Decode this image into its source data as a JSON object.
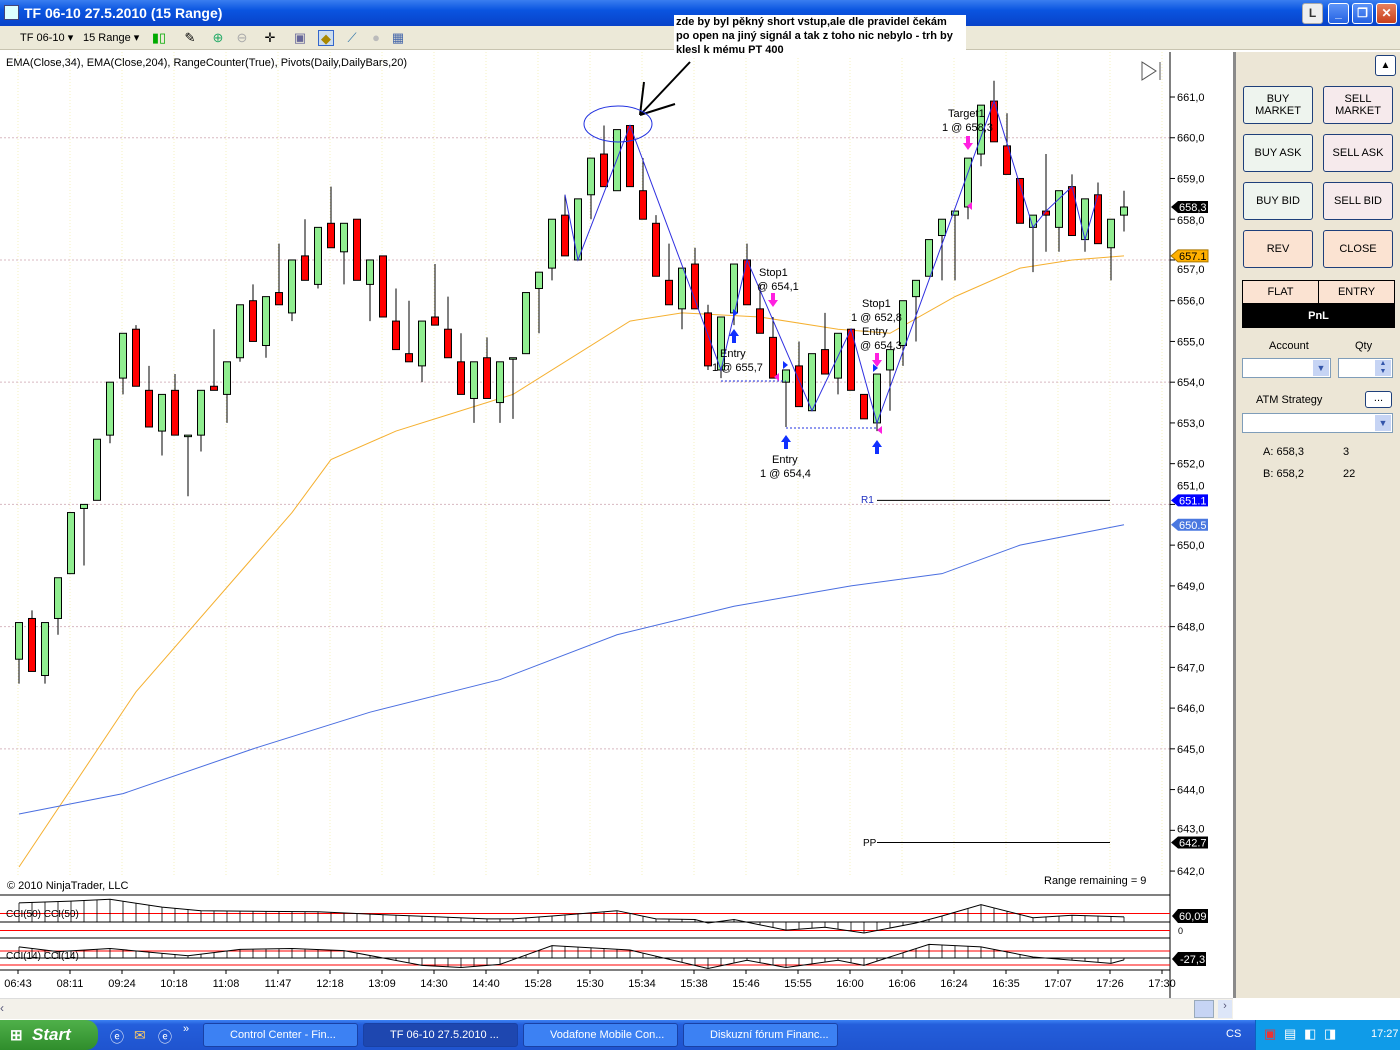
{
  "window": {
    "title": "TF 06-10  27.5.2010 (15 Range)",
    "buttons": {
      "l": "L",
      "minimize": "_",
      "restore": "❐",
      "close": "✕"
    }
  },
  "toolbar": {
    "instrument": "TF 06-10",
    "period": "15 Range",
    "icons": [
      "candlestick-style-icon",
      "pencil-draw-icon",
      "zoom-in-icon",
      "zoom-out-icon",
      "crosshair-icon",
      "properties-icon",
      "strategies-icon",
      "indicators-icon",
      "disabled-icon",
      "data-box-icon"
    ]
  },
  "chart": {
    "indicator_legend": "EMA(Close,34), EMA(Close,204), RangeCounter(True), Pivots(Daily,DailyBars,20)",
    "annotation": [
      "zde by byl pěkný short vstup,ale dle pravidel čekám",
      "po open na jiný signál a tak z toho nic nebylo - trh by",
      "klesl k mému PT 400"
    ],
    "copyright": "© 2010 NinjaTrader, LLC",
    "range_remaining": "Range remaining = 9",
    "pivot_labels": {
      "r1": "R1",
      "pp": "PP"
    },
    "trade_labels": [
      {
        "l1": "Stop1",
        "l2": "@ 654,1"
      },
      {
        "l1": "Entry",
        "l2": "1 @ 655,7"
      },
      {
        "l1": "Stop1",
        "l2": "1 @ 652,8"
      },
      {
        "l1": "Entry",
        "l2": "@ 654,3"
      },
      {
        "l1": "Entry",
        "l2": "1 @ 654,4"
      },
      {
        "l1": "Target1",
        "l2": "1 @ 658,3"
      }
    ],
    "price_ticks": [
      "661,0",
      "660,0",
      "659,0",
      "658,0",
      "657,0",
      "656,0",
      "655,0",
      "654,0",
      "653,0",
      "652,0",
      "651,0",
      "650,0",
      "649,0",
      "648,0",
      "647,0",
      "646,0",
      "645,0",
      "644,0",
      "643,0",
      "642,0"
    ],
    "price_tags": [
      {
        "text": "658,3",
        "value": 658.3,
        "color": "#000000"
      },
      {
        "text": "657.1",
        "value": 657.1,
        "color": "#ffb000"
      },
      {
        "text": "651.1",
        "value": 651.1,
        "color": "#0000ff"
      },
      {
        "text": "650.5",
        "value": 650.5,
        "color": "#4a78e0"
      },
      {
        "text": "642.7",
        "value": 642.7,
        "color": "#000000"
      }
    ],
    "time_labels": [
      "06:43",
      "08:11",
      "09:24",
      "10:18",
      "11:08",
      "11:47",
      "12:18",
      "13:09",
      "14:30",
      "14:40",
      "15:28",
      "15:30",
      "15:34",
      "15:38",
      "15:46",
      "15:55",
      "16:00",
      "16:06",
      "16:24",
      "16:35",
      "17:07",
      "17:26",
      "17:30"
    ],
    "cci50": {
      "label": "CCI(50) CCI(50)",
      "value_tag": "60,09",
      "zero_label": "0"
    },
    "cci14": {
      "label": "CCI(14) CCI(14)",
      "value_tag": "-27,3"
    }
  },
  "chart_data": {
    "type": "candlestick",
    "ylim": [
      642,
      661.5
    ],
    "colors": {
      "up": "#90ee90",
      "down": "#ff0000",
      "ema34": "#f5b030",
      "ema204": "#4a6ee0",
      "zigzag": "#3030e0",
      "pivot": "#000000",
      "cci_bands": "#ff0000"
    },
    "ohlc": [
      [
        647.2,
        648.1,
        646.6,
        648.1
      ],
      [
        648.2,
        648.4,
        646.9,
        646.9
      ],
      [
        646.8,
        648.1,
        646.6,
        648.1
      ],
      [
        648.2,
        649.2,
        647.8,
        649.2
      ],
      [
        649.3,
        650.8,
        649.3,
        650.8
      ],
      [
        650.9,
        651.0,
        649.5,
        651.0
      ],
      [
        651.1,
        652.6,
        651.1,
        652.6
      ],
      [
        652.7,
        654.0,
        652.5,
        654.0
      ],
      [
        654.1,
        655.2,
        653.7,
        655.2
      ],
      [
        655.3,
        655.4,
        653.9,
        653.9
      ],
      [
        653.8,
        654.4,
        652.9,
        652.9
      ],
      [
        652.8,
        653.7,
        652.2,
        653.7
      ],
      [
        653.8,
        654.2,
        652.7,
        652.7
      ],
      [
        652.7,
        652.7,
        651.2,
        652.7
      ],
      [
        652.7,
        653.8,
        652.3,
        653.8
      ],
      [
        653.9,
        655.3,
        653.8,
        653.8
      ],
      [
        653.7,
        654.5,
        653.0,
        654.5
      ],
      [
        654.6,
        655.9,
        654.5,
        655.9
      ],
      [
        656.0,
        656.4,
        655.0,
        655.0
      ],
      [
        654.9,
        656.1,
        654.6,
        656.1
      ],
      [
        656.2,
        657.4,
        655.9,
        655.9
      ],
      [
        655.7,
        657.0,
        655.5,
        657.0
      ],
      [
        657.1,
        658.0,
        656.5,
        656.5
      ],
      [
        656.4,
        657.8,
        656.3,
        657.8
      ],
      [
        657.9,
        658.8,
        657.3,
        657.3
      ],
      [
        657.2,
        657.9,
        656.4,
        657.9
      ],
      [
        658.0,
        658.0,
        656.5,
        656.5
      ],
      [
        656.4,
        657.0,
        655.5,
        657.0
      ],
      [
        657.1,
        657.1,
        655.6,
        655.6
      ],
      [
        655.5,
        656.3,
        654.8,
        654.8
      ],
      [
        654.7,
        656.0,
        654.5,
        654.5
      ],
      [
        654.4,
        655.5,
        654.0,
        655.5
      ],
      [
        655.6,
        656.9,
        655.4,
        655.4
      ],
      [
        655.3,
        656.1,
        654.6,
        654.6
      ],
      [
        654.5,
        655.2,
        653.7,
        653.7
      ],
      [
        653.6,
        654.5,
        653.0,
        654.5
      ],
      [
        654.6,
        655.1,
        653.6,
        653.6
      ],
      [
        653.5,
        654.5,
        653.0,
        654.5
      ],
      [
        654.6,
        654.6,
        653.1,
        654.6
      ],
      [
        654.7,
        656.2,
        654.7,
        656.2
      ],
      [
        656.3,
        656.7,
        655.2,
        656.7
      ],
      [
        656.8,
        658.0,
        656.5,
        658.0
      ],
      [
        658.1,
        658.6,
        657.1,
        657.1
      ],
      [
        657.0,
        658.5,
        657.0,
        658.5
      ],
      [
        658.6,
        659.5,
        658.0,
        659.5
      ],
      [
        659.6,
        660.3,
        658.8,
        658.8
      ],
      [
        658.7,
        660.2,
        658.7,
        660.2
      ],
      [
        660.3,
        660.3,
        658.8,
        658.8
      ],
      [
        658.7,
        659.5,
        658.0,
        658.0
      ],
      [
        657.9,
        658.1,
        656.6,
        656.6
      ],
      [
        656.5,
        657.4,
        655.9,
        655.9
      ],
      [
        655.8,
        656.8,
        655.3,
        656.8
      ],
      [
        656.9,
        657.3,
        655.8,
        655.8
      ],
      [
        655.7,
        655.9,
        654.3,
        654.4
      ],
      [
        654.3,
        655.6,
        654.1,
        655.6
      ],
      [
        655.7,
        656.9,
        655.4,
        656.9
      ],
      [
        657.0,
        657.4,
        655.9,
        655.9
      ],
      [
        655.8,
        656.4,
        655.2,
        655.2
      ],
      [
        655.1,
        655.6,
        654.1,
        654.1
      ],
      [
        654.0,
        654.3,
        652.9,
        654.3
      ],
      [
        654.4,
        655.0,
        653.4,
        653.4
      ],
      [
        653.3,
        654.7,
        653.3,
        654.7
      ],
      [
        654.8,
        655.7,
        654.2,
        654.2
      ],
      [
        654.1,
        655.2,
        653.7,
        655.2
      ],
      [
        655.3,
        655.3,
        653.8,
        653.8
      ],
      [
        653.7,
        653.7,
        653.1,
        653.1
      ],
      [
        653.0,
        654.2,
        652.8,
        654.2
      ],
      [
        654.3,
        654.8,
        653.3,
        654.8
      ],
      [
        654.9,
        656.0,
        654.4,
        656.0
      ],
      [
        656.1,
        656.5,
        655.0,
        656.5
      ],
      [
        656.6,
        657.5,
        656.6,
        657.5
      ],
      [
        657.6,
        658.0,
        656.5,
        658.0
      ],
      [
        658.1,
        658.2,
        656.5,
        658.2
      ],
      [
        658.3,
        659.5,
        658.0,
        659.5
      ],
      [
        659.6,
        660.8,
        659.3,
        660.8
      ],
      [
        660.9,
        661.4,
        659.9,
        659.9
      ],
      [
        659.8,
        660.6,
        659.1,
        659.1
      ],
      [
        659.0,
        659.0,
        657.9,
        657.9
      ],
      [
        657.8,
        658.1,
        656.7,
        658.1
      ],
      [
        658.2,
        659.6,
        657.2,
        658.1
      ],
      [
        657.8,
        658.7,
        657.2,
        658.7
      ],
      [
        658.8,
        659.1,
        657.6,
        657.6
      ],
      [
        657.5,
        658.5,
        657.2,
        658.5
      ],
      [
        658.6,
        658.9,
        657.4,
        657.4
      ],
      [
        657.3,
        658.0,
        656.5,
        658.0
      ],
      [
        658.1,
        658.7,
        657.7,
        658.3
      ]
    ],
    "ema34": [
      [
        1,
        642.1
      ],
      [
        10,
        646.4
      ],
      [
        22,
        650.8
      ],
      [
        25,
        652.1
      ],
      [
        30,
        652.8
      ],
      [
        34,
        653.2
      ],
      [
        39,
        653.7
      ],
      [
        48,
        655.5
      ],
      [
        52,
        655.7
      ],
      [
        58,
        655.6
      ],
      [
        64,
        655.3
      ],
      [
        68,
        655.2
      ],
      [
        73,
        656.1
      ],
      [
        78,
        656.8
      ],
      [
        82,
        657.0
      ],
      [
        86,
        657.1
      ]
    ],
    "ema204": [
      [
        1,
        643.4
      ],
      [
        9,
        643.9
      ],
      [
        19,
        645.0
      ],
      [
        28,
        645.9
      ],
      [
        38,
        646.7
      ],
      [
        47,
        647.8
      ],
      [
        56,
        648.5
      ],
      [
        65,
        649.0
      ],
      [
        72,
        649.3
      ],
      [
        78,
        650.0
      ],
      [
        86,
        650.5
      ]
    ],
    "zigzag": [
      [
        43,
        658.6
      ],
      [
        44,
        657.0
      ],
      [
        48,
        660.3
      ],
      [
        55,
        654.3
      ],
      [
        57,
        657.0
      ],
      [
        62,
        653.3
      ],
      [
        65,
        655.3
      ],
      [
        67,
        653.0
      ],
      [
        76,
        660.9
      ],
      [
        79,
        657.8
      ],
      [
        80,
        658.2
      ],
      [
        82,
        658.8
      ],
      [
        83,
        657.5
      ],
      [
        84,
        658.6
      ]
    ],
    "pivots": {
      "r1": 651.1,
      "pp": 642.7,
      "from_bar": 67,
      "to_bar": 85
    },
    "cci50": [
      [
        1,
        225
      ],
      [
        5,
        246
      ],
      [
        8,
        267
      ],
      [
        12,
        175
      ],
      [
        15,
        133
      ],
      [
        20,
        125
      ],
      [
        24,
        121
      ],
      [
        28,
        92
      ],
      [
        33,
        62
      ],
      [
        37,
        37
      ],
      [
        39,
        37
      ],
      [
        42,
        71
      ],
      [
        47,
        133
      ],
      [
        50,
        37
      ],
      [
        53,
        29
      ],
      [
        54,
        -12
      ],
      [
        56,
        29
      ],
      [
        60,
        -96
      ],
      [
        63,
        -62
      ],
      [
        66,
        -129
      ],
      [
        70,
        -12
      ],
      [
        72,
        71
      ],
      [
        75,
        204
      ],
      [
        79,
        50
      ],
      [
        82,
        79
      ],
      [
        86,
        60
      ]
    ],
    "cci14": [
      [
        1,
        159
      ],
      [
        4,
        91
      ],
      [
        8,
        136
      ],
      [
        14,
        32
      ],
      [
        18,
        123
      ],
      [
        22,
        136
      ],
      [
        26,
        105
      ],
      [
        32,
        -105
      ],
      [
        35,
        -136
      ],
      [
        38,
        -91
      ],
      [
        42,
        177
      ],
      [
        48,
        114
      ],
      [
        54,
        -150
      ],
      [
        57,
        -32
      ],
      [
        60,
        -136
      ],
      [
        64,
        -32
      ],
      [
        66,
        -105
      ],
      [
        71,
        195
      ],
      [
        75,
        159
      ],
      [
        79,
        14
      ],
      [
        85,
        -77
      ],
      [
        86,
        -27
      ]
    ]
  },
  "order_panel": {
    "buy_market": [
      "BUY",
      "MARKET"
    ],
    "sell_market": [
      "SELL",
      "MARKET"
    ],
    "buy_ask": "BUY ASK",
    "sell_ask": "SELL ASK",
    "buy_bid": "BUY BID",
    "sell_bid": "SELL BID",
    "rev": "REV",
    "close": "CLOSE",
    "flat": "FLAT",
    "entry": "ENTRY",
    "pnl": "PnL",
    "account_label": "Account",
    "qty_label": "Qty",
    "atm_label": "ATM Strategy",
    "atm_button": "...",
    "ask": {
      "label": "A: 658,3",
      "size": "3"
    },
    "bid": {
      "label": "B: 658,2",
      "size": "22"
    }
  },
  "taskbar": {
    "start": "Start",
    "tasks": [
      "Control Center - Fin...",
      "TF 06-10  27.5.2010 ...",
      "Vodafone Mobile Con...",
      "Diskuzní fórum Financ..."
    ],
    "language": "CS",
    "clock": "17:27"
  }
}
